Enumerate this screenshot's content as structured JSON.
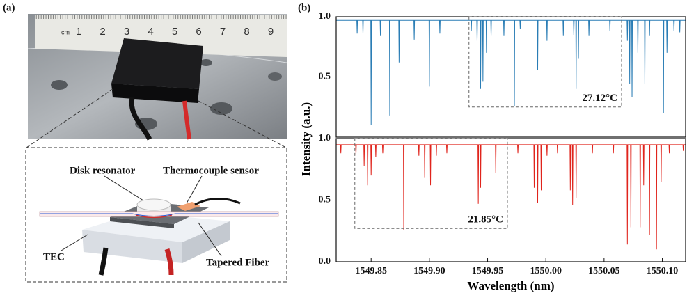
{
  "panel_labels": [
    "(a)",
    "(b)"
  ],
  "photo": {
    "ruler_unit": "cm",
    "ruler_numbers": [
      "1",
      "2",
      "3",
      "4",
      "5",
      "6",
      "7",
      "8",
      "9"
    ]
  },
  "diagram": {
    "labels": [
      "Disk resonator",
      "Thermocouple sensor",
      "TEC",
      "Tapered Fiber"
    ]
  },
  "chart_data": [
    {
      "type": "line",
      "ylabel": "Intensity (a.u.)",
      "x": [
        1549.82,
        1549.8377,
        1549.838,
        1549.8383,
        1549.8427,
        1549.843,
        1549.8433,
        1549.8497,
        1549.85,
        1549.8503,
        1549.8577,
        1549.858,
        1549.8583,
        1549.8657,
        1549.866,
        1549.8663,
        1549.8737,
        1549.874,
        1549.8743,
        1549.8867,
        1549.887,
        1549.8873,
        1549.8997,
        1549.9,
        1549.9003,
        1549.9087,
        1549.909,
        1549.9093,
        1549.9357,
        1549.936,
        1549.9363,
        1549.9407,
        1549.941,
        1549.9413,
        1549.9437,
        1549.944,
        1549.9443,
        1549.9457,
        1549.946,
        1549.9463,
        1549.9487,
        1549.949,
        1549.9493,
        1549.9527,
        1549.953,
        1549.9533,
        1549.9637,
        1549.964,
        1549.9643,
        1549.9727,
        1549.973,
        1549.9733,
        1549.9777,
        1549.978,
        1549.9783,
        1549.9927,
        1549.993,
        1549.9933,
        1550.0007,
        1550.001,
        1550.0013,
        1550.0147,
        1550.015,
        1550.0153,
        1550.0237,
        1550.024,
        1550.0243,
        1550.0257,
        1550.026,
        1550.0263,
        1550.0277,
        1550.028,
        1550.0283,
        1550.0367,
        1550.037,
        1550.0373,
        1550.0547,
        1550.055,
        1550.0553,
        1550.0697,
        1550.07,
        1550.0703,
        1550.0717,
        1550.072,
        1550.0723,
        1550.0737,
        1550.074,
        1550.0743,
        1550.0787,
        1550.079,
        1550.0793,
        1550.0847,
        1550.085,
        1550.0853,
        1550.0887,
        1550.089,
        1550.0893,
        1550.1007,
        1550.101,
        1550.1013,
        1550.1037,
        1550.104,
        1550.1043,
        1550.1097,
        1550.11,
        1550.1103,
        1550.1147,
        1550.115,
        1550.1153,
        1550.12
      ],
      "series": [
        {
          "color": "#2a7db5",
          "values": [
            0.97,
            0.97,
            0.86,
            0.97,
            0.97,
            0.86,
            0.97,
            0.97,
            0.1,
            0.97,
            0.97,
            0.84,
            0.97,
            0.97,
            0.18,
            0.97,
            0.97,
            0.62,
            0.97,
            0.97,
            0.81,
            0.97,
            0.97,
            0.42,
            0.97,
            0.97,
            0.86,
            0.97,
            0.97,
            0.88,
            0.97,
            0.97,
            0.8,
            0.97,
            0.97,
            0.4,
            0.97,
            0.97,
            0.46,
            0.97,
            0.97,
            0.7,
            0.97,
            0.97,
            0.84,
            0.97,
            0.97,
            0.84,
            0.97,
            0.97,
            0.26,
            0.97,
            0.97,
            0.9,
            0.97,
            0.97,
            0.56,
            0.97,
            0.97,
            0.8,
            0.97,
            0.97,
            0.84,
            0.97,
            0.97,
            0.85,
            0.97,
            0.97,
            0.4,
            0.97,
            0.97,
            0.65,
            0.97,
            0.97,
            0.84,
            0.97,
            0.97,
            0.88,
            0.97,
            0.97,
            0.8,
            0.97,
            0.97,
            0.44,
            0.97,
            0.97,
            0.33,
            0.97,
            0.97,
            0.7,
            0.97,
            0.97,
            0.44,
            0.97,
            0.97,
            0.84,
            0.97,
            0.97,
            0.2,
            0.97,
            0.97,
            0.7,
            0.97,
            0.97,
            0.88,
            0.97,
            0.97,
            0.87,
            0.97,
            0.97
          ]
        }
      ],
      "xlim": [
        1549.82,
        1550.12
      ],
      "ylim": [
        0,
        1
      ],
      "yticks": [
        0.5,
        {
          "value": 1,
          "label": "1.0"
        }
      ],
      "annotation": {
        "text": "27.12°C",
        "box": {
          "x": [
            1549.934,
            1550.065
          ],
          "y": [
            0.25,
            1
          ]
        }
      }
    },
    {
      "type": "line",
      "xlabel": "Wavelength (nm)",
      "x": [
        1549.82,
        1549.8237,
        1549.824,
        1549.8243,
        1549.8367,
        1549.837,
        1549.8373,
        1549.8437,
        1549.844,
        1549.8443,
        1549.8467,
        1549.847,
        1549.8473,
        1549.8497,
        1549.85,
        1549.8503,
        1549.8537,
        1549.854,
        1549.8543,
        1549.8597,
        1549.86,
        1549.8603,
        1549.8777,
        1549.878,
        1549.8783,
        1549.8907,
        1549.891,
        1549.8913,
        1549.8957,
        1549.896,
        1549.8963,
        1549.9007,
        1549.901,
        1549.9013,
        1549.9057,
        1549.906,
        1549.9063,
        1549.9147,
        1549.915,
        1549.9153,
        1549.9417,
        1549.942,
        1549.9423,
        1549.9437,
        1549.944,
        1549.9443,
        1549.9567,
        1549.957,
        1549.9573,
        1549.9757,
        1549.976,
        1549.9763,
        1549.9897,
        1549.99,
        1549.9903,
        1549.9927,
        1549.993,
        1549.9933,
        1549.9957,
        1549.996,
        1549.9963,
        1550.0007,
        1550.001,
        1550.0013,
        1550.0097,
        1550.01,
        1550.0103,
        1550.0207,
        1550.021,
        1550.0213,
        1550.0227,
        1550.023,
        1550.0233,
        1550.0257,
        1550.026,
        1550.0263,
        1550.0397,
        1550.04,
        1550.0403,
        1550.0577,
        1550.058,
        1550.0583,
        1550.0697,
        1550.07,
        1550.0703,
        1550.0727,
        1550.073,
        1550.0733,
        1550.0807,
        1550.081,
        1550.0813,
        1550.0837,
        1550.084,
        1550.0843,
        1550.0887,
        1550.089,
        1550.0893,
        1550.0947,
        1550.095,
        1550.0953,
        1550.0987,
        1550.099,
        1550.0993,
        1550.1057,
        1550.106,
        1550.1063,
        1550.1177,
        1550.118,
        1550.1183,
        1550.12
      ],
      "series": [
        {
          "color": "#e0241c",
          "values": [
            0.95,
            0.95,
            0.88,
            0.95,
            0.95,
            0.87,
            0.95,
            0.95,
            0.78,
            0.95,
            0.95,
            0.62,
            0.95,
            0.95,
            0.7,
            0.95,
            0.95,
            0.85,
            0.95,
            0.95,
            0.88,
            0.95,
            0.95,
            0.26,
            0.95,
            0.95,
            0.86,
            0.95,
            0.95,
            0.68,
            0.95,
            0.95,
            0.62,
            0.95,
            0.95,
            0.86,
            0.95,
            0.95,
            0.88,
            0.95,
            0.95,
            0.47,
            0.95,
            0.95,
            0.6,
            0.95,
            0.95,
            0.72,
            0.95,
            0.95,
            0.88,
            0.95,
            0.95,
            0.6,
            0.95,
            0.95,
            0.48,
            0.95,
            0.95,
            0.58,
            0.95,
            0.95,
            0.86,
            0.95,
            0.95,
            0.88,
            0.95,
            0.95,
            0.58,
            0.95,
            0.95,
            0.46,
            0.95,
            0.95,
            0.52,
            0.95,
            0.95,
            0.88,
            0.95,
            0.95,
            0.88,
            0.95,
            0.95,
            0.14,
            0.95,
            0.95,
            0.28,
            0.95,
            0.95,
            0.28,
            0.95,
            0.95,
            0.62,
            0.95,
            0.95,
            0.22,
            0.95,
            0.95,
            0.1,
            0.95,
            0.95,
            0.65,
            0.95,
            0.95,
            0.88,
            0.95,
            0.95,
            0.9,
            0.95,
            0.95
          ]
        }
      ],
      "xlim": [
        1549.82,
        1550.12
      ],
      "ylim": [
        0,
        1
      ],
      "xticks": [
        1549.85,
        {
          "value": 1549.9,
          "label": "1549.90"
        },
        1549.95,
        {
          "value": 1550,
          "label": "1550.00"
        },
        1550.05,
        {
          "value": 1550.1,
          "label": "1550.10"
        }
      ],
      "yticks": [
        {
          "value": 0,
          "label": "0.0"
        },
        0.5,
        {
          "value": 1,
          "label": "1.0"
        }
      ],
      "annotation": {
        "text": "21.85°C",
        "box": {
          "x": [
            1549.836,
            1549.967
          ],
          "y": [
            0.27,
            1
          ]
        }
      }
    }
  ]
}
